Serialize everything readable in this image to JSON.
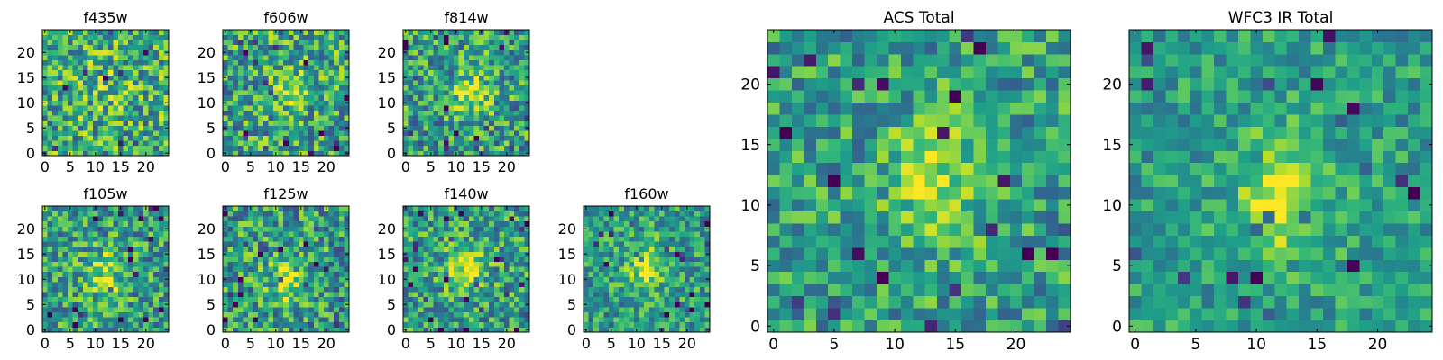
{
  "chart_data": [
    {
      "type": "heatmap",
      "title": "f435w",
      "xlabel": "",
      "ylabel": "",
      "xticks": [
        "0",
        "5",
        "10",
        "15",
        "20"
      ],
      "yticks": [
        "0",
        "5",
        "10",
        "15",
        "20"
      ],
      "xlim": [
        -0.5,
        24.5
      ],
      "ylim": [
        -0.5,
        24.5
      ],
      "grid": false,
      "colormap": "viridis",
      "grid_size": [
        25,
        25
      ],
      "value_range": [
        0,
        1
      ],
      "peak": [
        12,
        12
      ],
      "blob_strength": 0.08,
      "noise": 0.34,
      "background": 0.62
    },
    {
      "type": "heatmap",
      "title": "f606w",
      "xlabel": "",
      "ylabel": "",
      "xticks": [
        "0",
        "5",
        "10",
        "15",
        "20"
      ],
      "yticks": [
        "0",
        "5",
        "10",
        "15",
        "20"
      ],
      "xlim": [
        -0.5,
        24.5
      ],
      "ylim": [
        -0.5,
        24.5
      ],
      "grid": false,
      "colormap": "viridis",
      "grid_size": [
        25,
        25
      ],
      "value_range": [
        0,
        1
      ],
      "peak": [
        13,
        12
      ],
      "blob_strength": 0.22,
      "noise": 0.34,
      "background": 0.58
    },
    {
      "type": "heatmap",
      "title": "f814w",
      "xlabel": "",
      "ylabel": "",
      "xticks": [
        "0",
        "5",
        "10",
        "15",
        "20"
      ],
      "yticks": [
        "0",
        "5",
        "10",
        "15",
        "20"
      ],
      "xlim": [
        -0.5,
        24.5
      ],
      "ylim": [
        -0.5,
        24.5
      ],
      "grid": false,
      "colormap": "viridis",
      "grid_size": [
        25,
        25
      ],
      "value_range": [
        0,
        1
      ],
      "peak": [
        13,
        12
      ],
      "blob_strength": 0.32,
      "noise": 0.32,
      "background": 0.56
    },
    {
      "type": "heatmap",
      "title": "f105w",
      "xlabel": "",
      "ylabel": "",
      "xticks": [
        "0",
        "5",
        "10",
        "15",
        "20"
      ],
      "yticks": [
        "0",
        "5",
        "10",
        "15",
        "20"
      ],
      "xlim": [
        -0.5,
        24.5
      ],
      "ylim": [
        -0.5,
        24.5
      ],
      "grid": false,
      "colormap": "viridis",
      "grid_size": [
        25,
        25
      ],
      "value_range": [
        0,
        1
      ],
      "peak": [
        12,
        11
      ],
      "blob_strength": 0.28,
      "noise": 0.3,
      "background": 0.56
    },
    {
      "type": "heatmap",
      "title": "f125w",
      "xlabel": "",
      "ylabel": "",
      "xticks": [
        "0",
        "5",
        "10",
        "15",
        "20"
      ],
      "yticks": [
        "0",
        "5",
        "10",
        "15",
        "20"
      ],
      "xlim": [
        -0.5,
        24.5
      ],
      "ylim": [
        -0.5,
        24.5
      ],
      "grid": false,
      "colormap": "viridis",
      "grid_size": [
        25,
        25
      ],
      "value_range": [
        0,
        1
      ],
      "peak": [
        12,
        10
      ],
      "blob_strength": 0.26,
      "noise": 0.32,
      "background": 0.55
    },
    {
      "type": "heatmap",
      "title": "f140w",
      "xlabel": "",
      "ylabel": "",
      "xticks": [
        "0",
        "5",
        "10",
        "15",
        "20"
      ],
      "yticks": [
        "0",
        "5",
        "10",
        "15",
        "20"
      ],
      "xlim": [
        -0.5,
        24.5
      ],
      "ylim": [
        -0.5,
        24.5
      ],
      "grid": false,
      "colormap": "viridis",
      "grid_size": [
        25,
        25
      ],
      "value_range": [
        0,
        1
      ],
      "peak": [
        12,
        12
      ],
      "blob_strength": 0.3,
      "noise": 0.3,
      "background": 0.56
    },
    {
      "type": "heatmap",
      "title": "f160w",
      "xlabel": "",
      "ylabel": "",
      "xticks": [
        "0",
        "5",
        "10",
        "15",
        "20"
      ],
      "yticks": [
        "0",
        "5",
        "10",
        "15",
        "20"
      ],
      "xlim": [
        -0.5,
        24.5
      ],
      "ylim": [
        -0.5,
        24.5
      ],
      "grid": false,
      "colormap": "viridis",
      "grid_size": [
        25,
        25
      ],
      "value_range": [
        0,
        1
      ],
      "peak": [
        12,
        12
      ],
      "blob_strength": 0.36,
      "noise": 0.26,
      "background": 0.55
    },
    {
      "type": "heatmap",
      "title": "ACS Total",
      "xlabel": "",
      "ylabel": "",
      "xticks": [
        "0",
        "5",
        "10",
        "15",
        "20"
      ],
      "yticks": [
        "0",
        "5",
        "10",
        "15",
        "20"
      ],
      "xlim": [
        -0.5,
        24.5
      ],
      "ylim": [
        -0.5,
        24.5
      ],
      "grid": false,
      "colormap": "viridis",
      "grid_size": [
        25,
        25
      ],
      "value_range": [
        0,
        1
      ],
      "peak": [
        13,
        12
      ],
      "blob_strength": 0.36,
      "noise": 0.26,
      "background": 0.56
    },
    {
      "type": "heatmap",
      "title": "WFC3 IR Total",
      "xlabel": "",
      "ylabel": "",
      "xticks": [
        "0",
        "5",
        "10",
        "15",
        "20"
      ],
      "yticks": [
        "0",
        "5",
        "10",
        "15",
        "20"
      ],
      "xlim": [
        -0.5,
        24.5
      ],
      "ylim": [
        -0.5,
        24.5
      ],
      "grid": false,
      "colormap": "viridis",
      "grid_size": [
        25,
        25
      ],
      "value_range": [
        0,
        1
      ],
      "peak": [
        12,
        11
      ],
      "blob_strength": 0.4,
      "noise": 0.2,
      "background": 0.55
    }
  ]
}
